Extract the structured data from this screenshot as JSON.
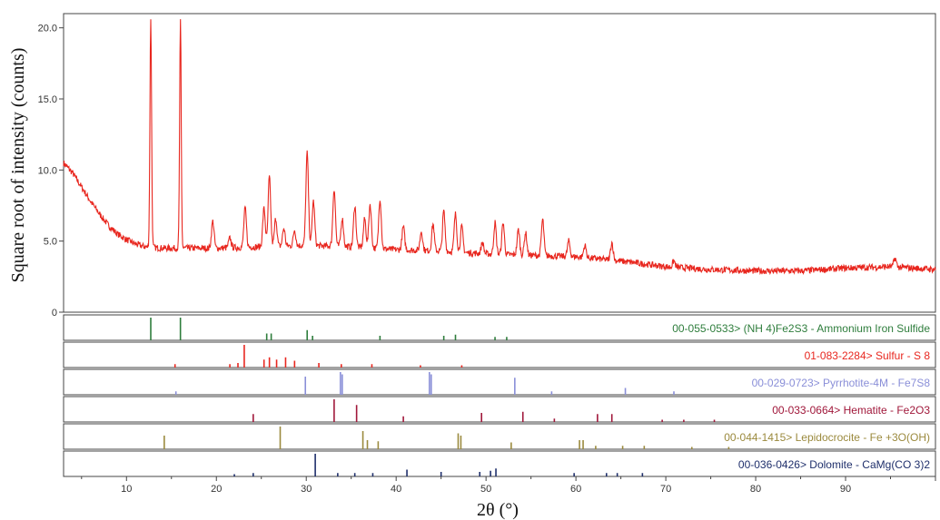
{
  "chart_data": {
    "type": "line",
    "xlabel": "2θ (°)",
    "ylabel": "Square root of intensity (counts)",
    "xlim": [
      3,
      100
    ],
    "ylim": [
      0,
      21
    ],
    "xticks": [
      "10",
      "20",
      "30",
      "40",
      "50",
      "60",
      "70",
      "80",
      "90"
    ],
    "yticks": [
      "0",
      "5.0",
      "10.0",
      "15.0",
      "20.0"
    ],
    "grid": false,
    "series": [
      {
        "color": "#e8271f",
        "baseline": [
          [
            3,
            10.5
          ],
          [
            4,
            9.8
          ],
          [
            5,
            8.8
          ],
          [
            6,
            7.8
          ],
          [
            7,
            6.9
          ],
          [
            8,
            6.1
          ],
          [
            9,
            5.5
          ],
          [
            10,
            5.1
          ],
          [
            11,
            4.8
          ],
          [
            12,
            4.6
          ],
          [
            14,
            4.5
          ],
          [
            17,
            4.5
          ],
          [
            20,
            4.5
          ],
          [
            25,
            4.6
          ],
          [
            30,
            4.7
          ],
          [
            35,
            4.6
          ],
          [
            40,
            4.4
          ],
          [
            45,
            4.3
          ],
          [
            50,
            4.1
          ],
          [
            55,
            4.0
          ],
          [
            60,
            3.9
          ],
          [
            65,
            3.6
          ],
          [
            70,
            3.2
          ],
          [
            75,
            3.0
          ],
          [
            80,
            2.9
          ],
          [
            85,
            2.9
          ],
          [
            90,
            3.1
          ],
          [
            95,
            3.2
          ],
          [
            100,
            3.0
          ]
        ],
        "peaks": [
          {
            "x": 12.7,
            "y": 20.7
          },
          {
            "x": 16.0,
            "y": 20.4
          },
          {
            "x": 19.6,
            "y": 6.4
          },
          {
            "x": 21.5,
            "y": 5.2
          },
          {
            "x": 23.2,
            "y": 7.3
          },
          {
            "x": 25.3,
            "y": 7.3
          },
          {
            "x": 25.9,
            "y": 9.5
          },
          {
            "x": 26.6,
            "y": 6.6
          },
          {
            "x": 27.5,
            "y": 5.9
          },
          {
            "x": 28.7,
            "y": 5.8
          },
          {
            "x": 30.1,
            "y": 11.2
          },
          {
            "x": 30.8,
            "y": 7.8
          },
          {
            "x": 33.1,
            "y": 8.7
          },
          {
            "x": 34.0,
            "y": 6.6
          },
          {
            "x": 35.4,
            "y": 7.5
          },
          {
            "x": 36.5,
            "y": 6.6
          },
          {
            "x": 37.1,
            "y": 7.6
          },
          {
            "x": 38.2,
            "y": 8.0
          },
          {
            "x": 40.8,
            "y": 6.0
          },
          {
            "x": 42.8,
            "y": 5.7
          },
          {
            "x": 44.1,
            "y": 6.2
          },
          {
            "x": 45.3,
            "y": 7.1
          },
          {
            "x": 46.6,
            "y": 6.9
          },
          {
            "x": 47.3,
            "y": 6.0
          },
          {
            "x": 49.6,
            "y": 4.9
          },
          {
            "x": 51.0,
            "y": 6.3
          },
          {
            "x": 51.9,
            "y": 6.3
          },
          {
            "x": 53.6,
            "y": 5.8
          },
          {
            "x": 54.4,
            "y": 5.6
          },
          {
            "x": 56.3,
            "y": 6.5
          },
          {
            "x": 59.2,
            "y": 5.0
          },
          {
            "x": 61.0,
            "y": 4.7
          },
          {
            "x": 64.0,
            "y": 4.9
          },
          {
            "x": 70.9,
            "y": 3.6
          },
          {
            "x": 95.5,
            "y": 3.8
          }
        ]
      }
    ],
    "phases": [
      {
        "label": "00-055-0533> (NH 4)Fe2S3 - Ammonium Iron Sulfide",
        "color": "#2e7d3c",
        "lines": [
          [
            12.7,
            1.0
          ],
          [
            16.0,
            1.0
          ],
          [
            25.6,
            0.3
          ],
          [
            26.1,
            0.3
          ],
          [
            30.1,
            0.45
          ],
          [
            30.7,
            0.2
          ],
          [
            38.2,
            0.2
          ],
          [
            45.3,
            0.2
          ],
          [
            46.6,
            0.25
          ],
          [
            51.0,
            0.15
          ],
          [
            52.3,
            0.15
          ]
        ]
      },
      {
        "label": "01-083-2284> Sulfur - S 8",
        "color": "#e8271f",
        "lines": [
          [
            15.4,
            0.15
          ],
          [
            21.5,
            0.15
          ],
          [
            22.4,
            0.2
          ],
          [
            23.1,
            1.0
          ],
          [
            25.3,
            0.35
          ],
          [
            25.9,
            0.45
          ],
          [
            26.7,
            0.35
          ],
          [
            27.7,
            0.45
          ],
          [
            28.7,
            0.3
          ],
          [
            31.4,
            0.2
          ],
          [
            33.9,
            0.15
          ],
          [
            37.3,
            0.15
          ],
          [
            42.7,
            0.1
          ],
          [
            47.3,
            0.1
          ]
        ]
      },
      {
        "label": "00-029-0723> Pyrrhotite-4M - Fe7S8",
        "color": "#8a8fd8",
        "lines": [
          [
            15.5,
            0.15
          ],
          [
            29.9,
            0.8
          ],
          [
            33.8,
            1.0
          ],
          [
            34.0,
            0.9
          ],
          [
            43.7,
            1.0
          ],
          [
            43.9,
            0.9
          ],
          [
            53.2,
            0.75
          ],
          [
            57.3,
            0.15
          ],
          [
            65.5,
            0.3
          ],
          [
            70.9,
            0.15
          ]
        ]
      },
      {
        "label": "00-033-0664> Hematite - Fe2O3",
        "color": "#a0173a",
        "lines": [
          [
            24.1,
            0.35
          ],
          [
            33.1,
            1.0
          ],
          [
            35.6,
            0.75
          ],
          [
            40.8,
            0.25
          ],
          [
            49.5,
            0.4
          ],
          [
            54.1,
            0.45
          ],
          [
            57.6,
            0.15
          ],
          [
            62.4,
            0.35
          ],
          [
            64.0,
            0.35
          ],
          [
            69.6,
            0.1
          ],
          [
            72.0,
            0.1
          ],
          [
            75.4,
            0.1
          ]
        ]
      },
      {
        "label": "00-044-1415> Lepidocrocite - Fe +3O(OH)",
        "color": "#9b8a3e",
        "lines": [
          [
            14.2,
            0.6
          ],
          [
            27.1,
            1.0
          ],
          [
            36.3,
            0.8
          ],
          [
            36.8,
            0.4
          ],
          [
            38.0,
            0.35
          ],
          [
            46.9,
            0.7
          ],
          [
            47.2,
            0.6
          ],
          [
            52.8,
            0.3
          ],
          [
            60.4,
            0.4
          ],
          [
            60.8,
            0.4
          ],
          [
            62.2,
            0.15
          ],
          [
            65.2,
            0.15
          ],
          [
            67.6,
            0.15
          ],
          [
            72.9,
            0.1
          ],
          [
            77.0,
            0.1
          ]
        ]
      },
      {
        "label": "00-036-0426> Dolomite - CaMg(CO 3)2",
        "color": "#1f2f6b",
        "lines": [
          [
            22.0,
            0.1
          ],
          [
            24.1,
            0.15
          ],
          [
            31.0,
            1.0
          ],
          [
            33.5,
            0.15
          ],
          [
            35.4,
            0.15
          ],
          [
            37.4,
            0.15
          ],
          [
            41.2,
            0.3
          ],
          [
            45.0,
            0.2
          ],
          [
            49.3,
            0.2
          ],
          [
            50.5,
            0.25
          ],
          [
            51.1,
            0.35
          ],
          [
            59.8,
            0.15
          ],
          [
            63.4,
            0.15
          ],
          [
            64.6,
            0.15
          ],
          [
            67.4,
            0.15
          ]
        ]
      }
    ]
  }
}
